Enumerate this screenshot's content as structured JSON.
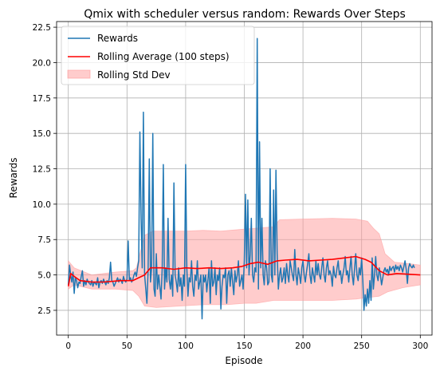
{
  "chart_data": {
    "type": "line",
    "title": "Qmix with scheduler versus random: Rewards Over Steps",
    "xlabel": "Episode",
    "ylabel": "Rewards",
    "xlim": [
      -10,
      310
    ],
    "ylim": [
      0.75,
      22.9
    ],
    "xticks": [
      "0",
      "50",
      "100",
      "150",
      "200",
      "250",
      "300"
    ],
    "xtick_values": [
      0,
      50,
      100,
      150,
      200,
      250,
      300
    ],
    "yticks": [
      "2.5",
      "5.0",
      "7.5",
      "10.0",
      "12.5",
      "15.0",
      "17.5",
      "20.0",
      "22.5"
    ],
    "ytick_values": [
      2.5,
      5.0,
      7.5,
      10.0,
      12.5,
      15.0,
      17.5,
      20.0,
      22.5
    ],
    "grid": true,
    "legend_position": "top-left",
    "colors": {
      "rewards": "#1f77b4",
      "rolling_avg": "#ff0000",
      "std_fill": "#ff9999"
    },
    "legend": [
      {
        "label": "Rewards",
        "kind": "line",
        "color": "#1f77b4"
      },
      {
        "label": "Rolling Average (100 steps)",
        "kind": "line",
        "color": "#ff0000"
      },
      {
        "label": "Rolling Std Dev",
        "kind": "patch",
        "color": "#ff9999"
      }
    ],
    "series": [
      {
        "name": "Rewards",
        "x_start": 0,
        "values": [
          4.3,
          5.7,
          5.0,
          4.5,
          5.2,
          3.7,
          4.8,
          4.6,
          4.1,
          4.5,
          4.4,
          4.9,
          5.3,
          4.2,
          4.6,
          4.3,
          4.7,
          4.5,
          4.4,
          4.3,
          4.6,
          4.2,
          4.5,
          4.4,
          4.3,
          4.8,
          4.1,
          4.5,
          4.6,
          4.4,
          4.7,
          4.5,
          4.3,
          4.6,
          4.4,
          4.8,
          5.9,
          4.6,
          4.5,
          4.2,
          4.4,
          4.6,
          4.8,
          4.5,
          4.7,
          4.6,
          4.4,
          4.9,
          4.6,
          4.5,
          4.7,
          7.4,
          4.6,
          4.8,
          4.5,
          4.7,
          5.0,
          5.2,
          4.9,
          5.5,
          6.0,
          15.1,
          9.0,
          5.5,
          16.5,
          5.0,
          4.0,
          3.0,
          5.3,
          13.2,
          4.5,
          5.5,
          15.0,
          4.0,
          3.5,
          6.5,
          4.0,
          5.0,
          4.2,
          3.3,
          5.5,
          12.8,
          4.0,
          5.5,
          4.5,
          9.0,
          4.7,
          4.0,
          5.0,
          3.5,
          11.5,
          5.0,
          4.5,
          3.8,
          5.5,
          4.2,
          4.8,
          3.2,
          5.0,
          4.2,
          12.8,
          5.5,
          3.5,
          4.8,
          4.5,
          6.0,
          4.2,
          3.5,
          5.0,
          4.6,
          6.0,
          4.0,
          4.5,
          5.0,
          1.9,
          5.0,
          4.5,
          5.0,
          3.8,
          4.7,
          5.5,
          3.0,
          6.0,
          4.2,
          4.5,
          5.5,
          3.6,
          5.0,
          4.6,
          5.5,
          2.6,
          4.2,
          5.0,
          4.8,
          5.5,
          3.0,
          5.0,
          5.3,
          4.2,
          5.5,
          4.5,
          3.6,
          5.3,
          4.5,
          5.0,
          6.0,
          4.2,
          4.6,
          5.0,
          4.0,
          6.0,
          10.7,
          5.5,
          10.3,
          5.0,
          6.5,
          9.0,
          5.0,
          4.5,
          5.5,
          5.2,
          21.7,
          4.0,
          14.4,
          5.5,
          9.0,
          5.0,
          4.3,
          6.0,
          5.5,
          4.3,
          4.5,
          12.5,
          5.0,
          4.5,
          11.0,
          5.0,
          12.4,
          6.5,
          4.0,
          5.0,
          5.5,
          4.5,
          4.8,
          5.5,
          4.4,
          5.8,
          5.0,
          4.5,
          6.0,
          5.5,
          5.0,
          4.6,
          6.8,
          5.0,
          4.3,
          5.5,
          5.0,
          4.4,
          5.5,
          6.0,
          5.0,
          4.5,
          5.2,
          5.8,
          6.5,
          5.0,
          4.4,
          5.5,
          5.0,
          4.5,
          6.0,
          5.0,
          5.8,
          5.0,
          4.7,
          5.5,
          6.2,
          5.0,
          4.5,
          5.5,
          6.0,
          5.0,
          5.3,
          5.0,
          4.2,
          5.6,
          5.0,
          4.8,
          5.5,
          6.0,
          5.0,
          5.3,
          4.4,
          5.0,
          5.5,
          6.3,
          5.0,
          5.3,
          4.5,
          5.5,
          6.3,
          5.0,
          4.3,
          5.5,
          6.5,
          5.0,
          4.6,
          5.5,
          5.0,
          6.2,
          4.6,
          2.5,
          3.6,
          2.8,
          4.0,
          3.0,
          4.6,
          3.2,
          6.2,
          4.0,
          5.0,
          6.3,
          5.0,
          4.6,
          5.5,
          5.0,
          4.3,
          4.8,
          5.3,
          5.5,
          5.2,
          5.4,
          5.0,
          5.6,
          5.3,
          5.5,
          5.6,
          5.2,
          5.7,
          5.4,
          5.6,
          5.3,
          5.7,
          5.5,
          5.2,
          5.6,
          6.0,
          5.4,
          4.4,
          5.5,
          5.8,
          5.6,
          5.5,
          5.7,
          5.5
        ]
      },
      {
        "name": "Rolling Average (100 steps)",
        "points": [
          [
            0,
            4.2
          ],
          [
            2,
            5.1
          ],
          [
            5,
            4.9
          ],
          [
            10,
            4.6
          ],
          [
            20,
            4.5
          ],
          [
            30,
            4.5
          ],
          [
            45,
            4.6
          ],
          [
            55,
            4.6
          ],
          [
            60,
            4.8
          ],
          [
            65,
            5.0
          ],
          [
            70,
            5.5
          ],
          [
            80,
            5.5
          ],
          [
            90,
            5.4
          ],
          [
            100,
            5.5
          ],
          [
            110,
            5.45
          ],
          [
            120,
            5.5
          ],
          [
            130,
            5.45
          ],
          [
            140,
            5.5
          ],
          [
            148,
            5.6
          ],
          [
            155,
            5.8
          ],
          [
            162,
            5.9
          ],
          [
            170,
            5.75
          ],
          [
            178,
            6.0
          ],
          [
            185,
            6.05
          ],
          [
            195,
            6.1
          ],
          [
            205,
            6.0
          ],
          [
            215,
            6.05
          ],
          [
            225,
            6.1
          ],
          [
            235,
            6.2
          ],
          [
            245,
            6.3
          ],
          [
            253,
            6.1
          ],
          [
            258,
            5.9
          ],
          [
            265,
            5.3
          ],
          [
            272,
            5.0
          ],
          [
            280,
            5.1
          ],
          [
            290,
            5.05
          ],
          [
            300,
            5.0
          ]
        ]
      },
      {
        "name": "Rolling Std Dev",
        "upper": [
          [
            0,
            6.0
          ],
          [
            5,
            5.5
          ],
          [
            20,
            5.0
          ],
          [
            40,
            5.2
          ],
          [
            55,
            5.3
          ],
          [
            58,
            5.5
          ],
          [
            65,
            7.8
          ],
          [
            72,
            8.1
          ],
          [
            85,
            8.1
          ],
          [
            100,
            8.1
          ],
          [
            115,
            8.15
          ],
          [
            130,
            8.1
          ],
          [
            145,
            8.2
          ],
          [
            160,
            8.3
          ],
          [
            175,
            8.4
          ],
          [
            180,
            8.9
          ],
          [
            200,
            8.95
          ],
          [
            225,
            9.0
          ],
          [
            245,
            8.95
          ],
          [
            255,
            8.8
          ],
          [
            260,
            8.3
          ],
          [
            265,
            7.9
          ],
          [
            270,
            6.5
          ],
          [
            278,
            5.9
          ],
          [
            290,
            5.8
          ],
          [
            300,
            5.7
          ]
        ],
        "lower": [
          [
            0,
            4.0
          ],
          [
            5,
            4.3
          ],
          [
            20,
            4.0
          ],
          [
            40,
            4.0
          ],
          [
            55,
            3.9
          ],
          [
            60,
            3.5
          ],
          [
            65,
            2.8
          ],
          [
            75,
            2.7
          ],
          [
            95,
            2.8
          ],
          [
            115,
            2.9
          ],
          [
            135,
            2.9
          ],
          [
            150,
            3.0
          ],
          [
            160,
            3.0
          ],
          [
            175,
            3.2
          ],
          [
            195,
            3.2
          ],
          [
            225,
            3.2
          ],
          [
            245,
            3.3
          ],
          [
            255,
            3.4
          ],
          [
            265,
            3.5
          ],
          [
            272,
            3.8
          ],
          [
            285,
            4.1
          ],
          [
            300,
            4.3
          ]
        ]
      }
    ]
  }
}
